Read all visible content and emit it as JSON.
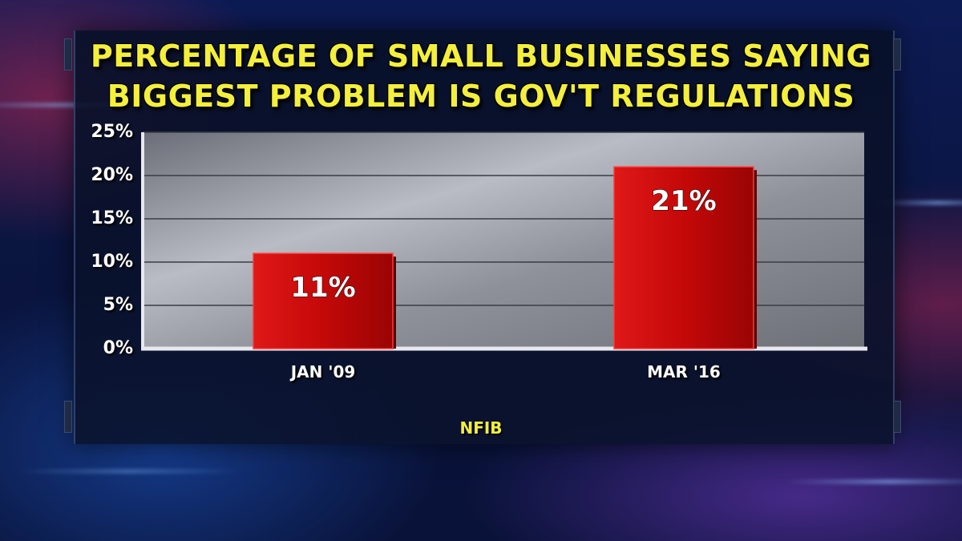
{
  "title_lines": [
    "PERCENTAGE OF SMALL BUSINESSES SAYING",
    "BIGGEST PROBLEM IS GOV'T REGULATIONS"
  ],
  "source": "NFIB",
  "colors": {
    "title": "#f3ef3c",
    "bar": "#c80a0a",
    "label": "#ffffff"
  },
  "chart_data": {
    "type": "bar",
    "title": "PERCENTAGE OF SMALL BUSINESSES SAYING BIGGEST PROBLEM IS GOV'T REGULATIONS",
    "categories": [
      "JAN '09",
      "MAR '16"
    ],
    "values": [
      11,
      21
    ],
    "data_labels": [
      "11%",
      "21%"
    ],
    "ylim": [
      0,
      25
    ],
    "yticks": [
      0,
      5,
      10,
      15,
      20,
      25
    ],
    "ytick_labels": [
      "0%",
      "5%",
      "10%",
      "15%",
      "20%",
      "25%"
    ],
    "grid": true,
    "xlabel": "",
    "ylabel": ""
  }
}
